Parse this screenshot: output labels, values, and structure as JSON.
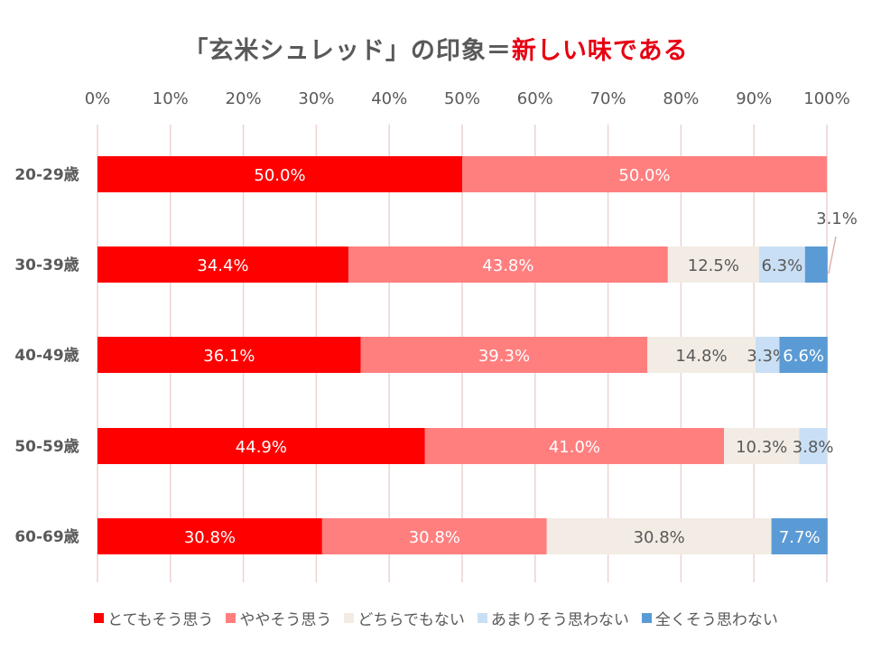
{
  "title": {
    "part1": "「玄米シュレッド」の印象＝",
    "part2": "新しい味である"
  },
  "chart_data": {
    "type": "bar",
    "orientation": "horizontal",
    "stacked": "percent",
    "title": "「玄米シュレッド」の印象＝新しい味である",
    "categories": [
      "20-29歳",
      "30-39歳",
      "40-49歳",
      "50-59歳",
      "60-69歳"
    ],
    "xlim": [
      0,
      100
    ],
    "xticks": [
      "0%",
      "10%",
      "20%",
      "30%",
      "40%",
      "50%",
      "60%",
      "70%",
      "80%",
      "90%",
      "100%"
    ],
    "grid": true,
    "legend_position": "bottom",
    "series": [
      {
        "name": "とてもそう思う",
        "color": "#ff0000",
        "label_color": "#ffffff",
        "values": [
          50.0,
          34.4,
          36.1,
          44.9,
          30.8
        ],
        "labels": [
          "50.0%",
          "34.4%",
          "36.1%",
          "44.9%",
          "30.8%"
        ]
      },
      {
        "name": "ややそう思う",
        "color": "#ff7f7f",
        "label_color": "#ffffff",
        "values": [
          50.0,
          43.8,
          39.3,
          41.0,
          30.8
        ],
        "labels": [
          "50.0%",
          "43.8%",
          "39.3%",
          "41.0%",
          "30.8%"
        ]
      },
      {
        "name": "どちらでもない",
        "color": "#f2ece4",
        "label_color": "#595959",
        "values": [
          0,
          12.5,
          14.8,
          10.3,
          30.8
        ],
        "labels": [
          "",
          "12.5%",
          "14.8%",
          "10.3%",
          "30.8%"
        ]
      },
      {
        "name": "あまりそう思わない",
        "color": "#c9dff5",
        "label_color": "#595959",
        "values": [
          0,
          6.3,
          3.3,
          3.8,
          0
        ],
        "labels": [
          "",
          "6.3%",
          "3.3%",
          "3.8%",
          ""
        ]
      },
      {
        "name": "全くそう思わない",
        "color": "#5b9bd5",
        "label_color": "#ffffff",
        "values": [
          0,
          3.1,
          6.6,
          0,
          7.7
        ],
        "labels": [
          "",
          "3.1%",
          "6.6%",
          "",
          "7.7%"
        ]
      }
    ]
  }
}
